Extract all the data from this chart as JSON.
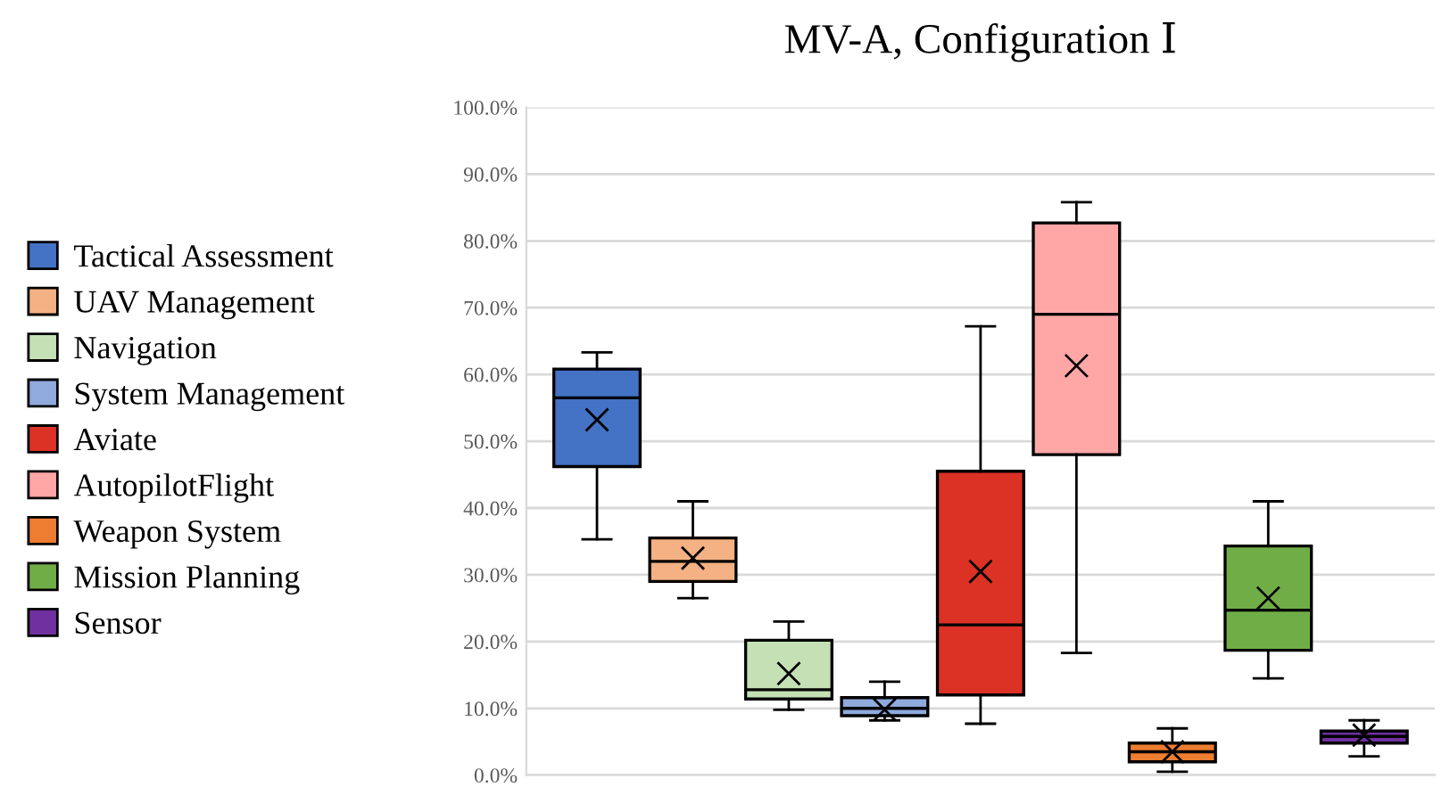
{
  "chart_data": {
    "type": "box",
    "title": "MV-A, Configuration Ⅰ",
    "categories": [
      null
    ],
    "series": [
      {
        "name": "Tactical Assessment",
        "color": "#4472c4",
        "boxes": [
          {
            "low": 35.3,
            "q1": 46.2,
            "median": 56.5,
            "q3": 60.8,
            "high": 63.3,
            "mean": 53.2
          }
        ]
      },
      {
        "name": "UAV Management",
        "color": "#f4b183",
        "boxes": [
          {
            "low": 26.5,
            "q1": 29,
            "median": 32,
            "q3": 35.5,
            "high": 41,
            "mean": 32.5
          }
        ]
      },
      {
        "name": "Navigation",
        "color": "#c5e0b4",
        "boxes": [
          {
            "low": 9.8,
            "q1": 11.4,
            "median": 12.8,
            "q3": 20.2,
            "high": 23,
            "mean": 15.2
          }
        ]
      },
      {
        "name": "System Management",
        "color": "#8faadc",
        "boxes": [
          {
            "low": 8.2,
            "q1": 8.9,
            "median": 10,
            "q3": 11.6,
            "high": 14,
            "mean": 9.8
          }
        ]
      },
      {
        "name": "Aviate",
        "color": "#dc3125",
        "boxes": [
          {
            "low": 7.7,
            "q1": 12,
            "median": 22.5,
            "q3": 45.5,
            "high": 67.2,
            "mean": 30.5
          }
        ]
      },
      {
        "name": "AutopilotFlight",
        "color": "#ffa6a6",
        "boxes": [
          {
            "low": 18.3,
            "q1": 48,
            "median": 69,
            "q3": 82.7,
            "high": 85.8,
            "mean": 61.3
          }
        ]
      },
      {
        "name": "Weapon System",
        "color": "#ed7d31",
        "boxes": [
          {
            "low": 0.5,
            "q1": 2,
            "median": 3.5,
            "q3": 4.8,
            "high": 7,
            "mean": 3.5
          }
        ]
      },
      {
        "name": "Mission Planning",
        "color": "#70ad47",
        "boxes": [
          {
            "low": 14.5,
            "q1": 18.7,
            "median": 24.7,
            "q3": 34.3,
            "high": 41,
            "mean": 26.5
          }
        ]
      },
      {
        "name": "Sensor",
        "color": "#7030a0",
        "boxes": [
          {
            "low": 2.8,
            "q1": 4.8,
            "median": 5.8,
            "q3": 6.6,
            "high": 8.2,
            "mean": 6
          }
        ]
      }
    ],
    "ylim": [
      0,
      100
    ],
    "yticks": [
      {
        "value": 0,
        "label": "0.0%"
      },
      {
        "value": 10,
        "label": "10.0%"
      },
      {
        "value": 20,
        "label": "20.0%"
      },
      {
        "value": 30,
        "label": "30.0%"
      },
      {
        "value": 40,
        "label": "40.0%"
      },
      {
        "value": 50,
        "label": "50.0%"
      },
      {
        "value": 60,
        "label": "60.0%"
      },
      {
        "value": 70,
        "label": "70.0%"
      },
      {
        "value": 80,
        "label": "80.0%"
      },
      {
        "value": 90,
        "label": "90.0%"
      },
      {
        "value": 100,
        "label": "100.0%"
      }
    ],
    "grid": "y",
    "legend": "left",
    "marker": "cross"
  }
}
